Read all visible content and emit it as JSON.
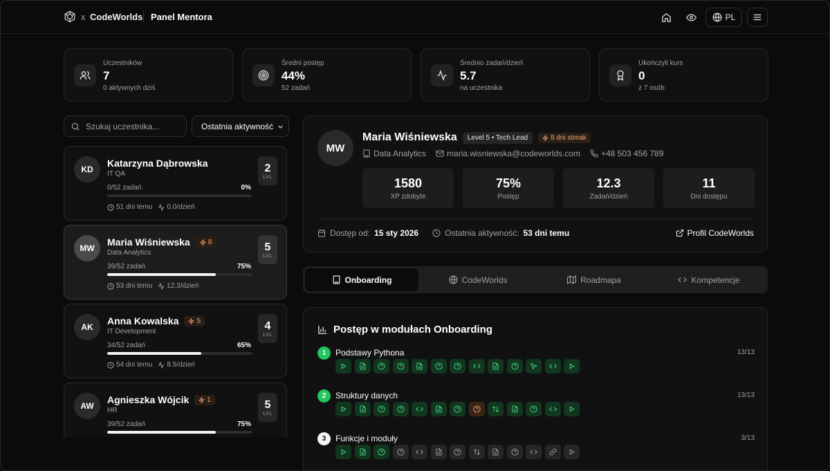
{
  "header": {
    "brand_x": "x",
    "brand": "CodeWorlds",
    "panel_title": "Panel Mentora",
    "lang": "PL"
  },
  "stats": [
    {
      "label": "Uczestników",
      "value": "7",
      "sub": "0 aktywnych dziś",
      "icon": "users-icon"
    },
    {
      "label": "Średni postęp",
      "value": "44%",
      "sub": "52 zadań",
      "icon": "target-icon"
    },
    {
      "label": "Średnio zadań/dzień",
      "value": "5.7",
      "sub": "na uczestnika",
      "icon": "activity-icon"
    },
    {
      "label": "Ukończyli kurs",
      "value": "0",
      "sub": "z 7 osób",
      "icon": "award-icon"
    }
  ],
  "search": {
    "placeholder": "Szukaj uczestnika..."
  },
  "sort": {
    "selected": "Ostatnia aktywność"
  },
  "participants": [
    {
      "initials": "KD",
      "name": "Katarzyna Dąbrowska",
      "streak": "",
      "dept": "IT QA",
      "tasks": "0/52 zadań",
      "percent": "0%",
      "progress": 0,
      "last": "51 dni temu",
      "rate": "0.0/dzień",
      "level": "2",
      "level_label": "LVL"
    },
    {
      "initials": "MW",
      "name": "Maria Wiśniewska",
      "streak": "8",
      "dept": "Data Analytics",
      "tasks": "39/52 zadań",
      "percent": "75%",
      "progress": 75,
      "last": "53 dni temu",
      "rate": "12.3/dzień",
      "level": "5",
      "level_label": "LVL"
    },
    {
      "initials": "AK",
      "name": "Anna Kowalska",
      "streak": "5",
      "dept": "IT Development",
      "tasks": "34/52 zadań",
      "percent": "65%",
      "progress": 65,
      "last": "54 dni temu",
      "rate": "8.5/dzień",
      "level": "4",
      "level_label": "LVL"
    },
    {
      "initials": "AW",
      "name": "Agnieszka Wójcik",
      "streak": "1",
      "dept": "HR",
      "tasks": "39/52 zadań",
      "percent": "75%",
      "progress": 75,
      "last": "",
      "rate": "",
      "level": "5",
      "level_label": "LVL"
    }
  ],
  "profile": {
    "initials": "MW",
    "name": "Maria Wiśniewska",
    "badge": "Level 5 • Tech Lead",
    "streak": "8 dni streak",
    "dept": "Data Analytics",
    "email": "maria.wisniewska@codeworlds.com",
    "phone": "+48 503 456 789",
    "kpis": [
      {
        "value": "1580",
        "label": "XP zdobyte"
      },
      {
        "value": "75%",
        "label": "Postęp"
      },
      {
        "value": "12.3",
        "label": "Zadań/dzień"
      },
      {
        "value": "11",
        "label": "Dni dostępu"
      }
    ],
    "access_label": "Dostęp od:",
    "access_value": "15 sty 2026",
    "activity_label": "Ostatnia aktywność:",
    "activity_value": "53 dni temu",
    "link": "Profil CodeWorlds"
  },
  "tabs": [
    {
      "label": "Onboarding",
      "icon": "building-icon"
    },
    {
      "label": "CodeWorlds",
      "icon": "globe-icon"
    },
    {
      "label": "Roadmapa",
      "icon": "map-icon"
    },
    {
      "label": "Kompetencje",
      "icon": "code-icon"
    }
  ],
  "modules": {
    "title": "Postęp w modułach Onboarding",
    "items": [
      {
        "num": "1",
        "name": "Podstawy Pythona",
        "count": "13/13",
        "status": "done",
        "chips": [
          [
            "play",
            "ok"
          ],
          [
            "doc",
            "ok"
          ],
          [
            "quiz",
            "ok"
          ],
          [
            "quiz",
            "ok"
          ],
          [
            "doc",
            "ok"
          ],
          [
            "quiz",
            "ok"
          ],
          [
            "quiz",
            "ok"
          ],
          [
            "code",
            "ok"
          ],
          [
            "doc",
            "ok"
          ],
          [
            "quiz",
            "ok"
          ],
          [
            "cursor",
            "ok"
          ],
          [
            "code",
            "ok"
          ],
          [
            "play",
            "ok"
          ]
        ]
      },
      {
        "num": "2",
        "name": "Struktury danych",
        "count": "13/13",
        "status": "done",
        "chips": [
          [
            "play",
            "ok"
          ],
          [
            "doc",
            "ok"
          ],
          [
            "quiz",
            "ok"
          ],
          [
            "quiz",
            "ok"
          ],
          [
            "code",
            "ok"
          ],
          [
            "doc",
            "ok"
          ],
          [
            "quiz",
            "ok"
          ],
          [
            "quiz",
            "warn"
          ],
          [
            "sort",
            "ok"
          ],
          [
            "doc",
            "ok"
          ],
          [
            "quiz",
            "ok"
          ],
          [
            "code",
            "ok"
          ],
          [
            "play",
            "ok"
          ]
        ]
      },
      {
        "num": "3",
        "name": "Funkcje i moduły",
        "count": "3/13",
        "status": "todo",
        "chips": [
          [
            "play",
            "ok"
          ],
          [
            "doc",
            "ok"
          ],
          [
            "quiz",
            "ok"
          ],
          [
            "quiz",
            "no"
          ],
          [
            "code",
            "no"
          ],
          [
            "doc",
            "no"
          ],
          [
            "quiz",
            "no"
          ],
          [
            "sort",
            "no"
          ],
          [
            "doc",
            "no"
          ],
          [
            "quiz",
            "no"
          ],
          [
            "code",
            "no"
          ],
          [
            "link",
            "no"
          ],
          [
            "play",
            "no"
          ]
        ]
      }
    ]
  }
}
